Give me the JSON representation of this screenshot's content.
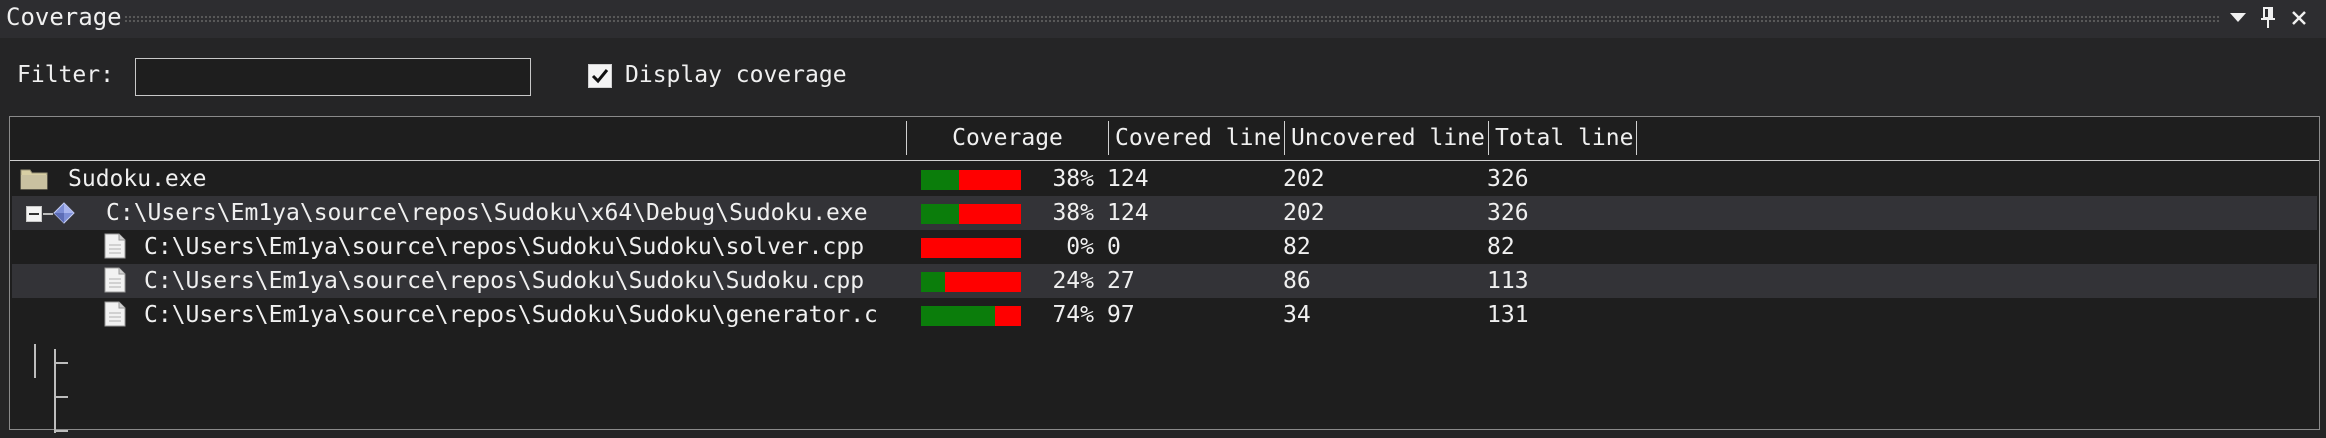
{
  "panel": {
    "title": "Coverage"
  },
  "toolbar": {
    "filter_label": "Filter:",
    "filter_value": "",
    "display_coverage_label": "Display coverage",
    "display_coverage_checked": true
  },
  "table": {
    "columns": [
      "",
      "Coverage",
      "Covered line",
      "Uncovered line",
      "Total line"
    ],
    "rows": [
      {
        "icon": "folder-icon",
        "name": "Sudoku.exe",
        "coverage_fraction": 0.38,
        "coverage_pct": "38%",
        "covered": "124",
        "uncovered": "202",
        "total": "326"
      },
      {
        "icon": "binary-module-icon",
        "name": "C:\\Users\\Em1ya\\source\\repos\\Sudoku\\x64\\Debug\\Sudoku.exe",
        "coverage_fraction": 0.38,
        "coverage_pct": "38%",
        "covered": "124",
        "uncovered": "202",
        "total": "326",
        "expanded": true
      },
      {
        "icon": "file-icon",
        "name": "C:\\Users\\Em1ya\\source\\repos\\Sudoku\\Sudoku\\solver.cpp",
        "coverage_fraction": 0.0,
        "coverage_pct": "0%",
        "covered": "0",
        "uncovered": "82",
        "total": "82"
      },
      {
        "icon": "file-icon",
        "name": "C:\\Users\\Em1ya\\source\\repos\\Sudoku\\Sudoku\\Sudoku.cpp",
        "coverage_fraction": 0.24,
        "coverage_pct": "24%",
        "covered": "27",
        "uncovered": "86",
        "total": "113"
      },
      {
        "icon": "file-icon",
        "name": "C:\\Users\\Em1ya\\source\\repos\\Sudoku\\Sudoku\\generator.c",
        "coverage_fraction": 0.74,
        "coverage_pct": "74%",
        "covered": "97",
        "uncovered": "34",
        "total": "131"
      }
    ]
  },
  "colors": {
    "covered": "#0b7d0b",
    "uncovered": "#ff0000",
    "background": "#1e1e1e",
    "selected_row": "#333337"
  }
}
